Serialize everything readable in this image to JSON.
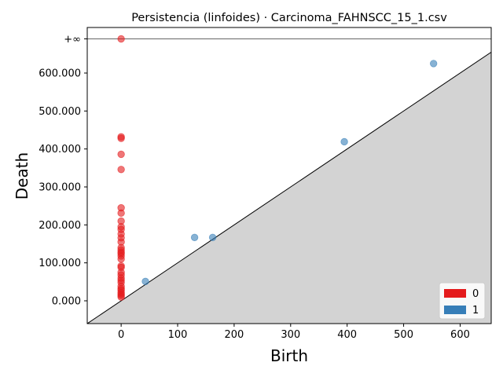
{
  "chart_data": {
    "type": "scatter",
    "title": "Persistencia (linfoides) · Carcinoma_FAHNSCC_15_1.csv",
    "xlabel": "Birth",
    "ylabel": "Death",
    "xlim": [
      -60,
      655
    ],
    "ylim": [
      -60,
      720
    ],
    "x_ticks": [
      0,
      100,
      200,
      300,
      400,
      500,
      600
    ],
    "y_ticks": [
      0,
      100000,
      200000,
      300000,
      400000,
      500000,
      600000
    ],
    "y_tick_labels": [
      "0.000",
      "100.000",
      "200.000",
      "300.000",
      "400.000",
      "500.000",
      "600.000"
    ],
    "infinity_label": "+∞",
    "infinity_value": 690,
    "colors": {
      "0": "#e41a1c",
      "1": "#377eb8",
      "diagonal_fill": "#d3d3d3"
    },
    "legend": {
      "position": "bottom-right",
      "entries": [
        {
          "label": "0",
          "color": "#e41a1c"
        },
        {
          "label": "1",
          "color": "#377eb8"
        }
      ]
    },
    "series": [
      {
        "name": "0",
        "color": "#e41a1c",
        "points": [
          [
            0,
            690
          ],
          [
            0,
            432
          ],
          [
            0,
            428
          ],
          [
            0,
            386
          ],
          [
            0,
            346
          ],
          [
            0,
            245
          ],
          [
            0,
            231
          ],
          [
            0,
            210
          ],
          [
            0,
            195
          ],
          [
            0,
            188
          ],
          [
            0,
            176
          ],
          [
            0,
            166
          ],
          [
            0,
            155
          ],
          [
            0,
            140
          ],
          [
            0,
            134
          ],
          [
            0,
            128
          ],
          [
            0,
            124
          ],
          [
            0,
            118
          ],
          [
            0,
            110
          ],
          [
            0,
            92
          ],
          [
            0,
            88
          ],
          [
            0,
            75
          ],
          [
            0,
            68
          ],
          [
            0,
            60
          ],
          [
            0,
            54
          ],
          [
            0,
            48
          ],
          [
            0,
            38
          ],
          [
            0,
            32
          ],
          [
            0,
            28
          ],
          [
            0,
            22
          ],
          [
            0,
            18
          ],
          [
            0,
            14
          ],
          [
            0,
            10
          ]
        ]
      },
      {
        "name": "1",
        "color": "#377eb8",
        "points": [
          [
            43,
            51
          ],
          [
            130,
            167
          ],
          [
            162,
            167
          ],
          [
            395,
            419
          ],
          [
            553,
            625
          ]
        ]
      }
    ]
  }
}
